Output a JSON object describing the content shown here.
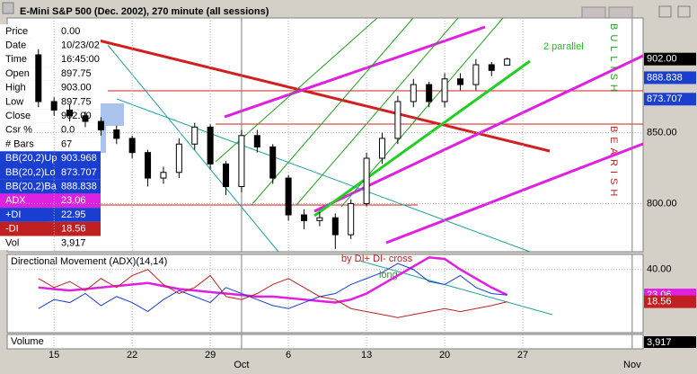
{
  "chart_data": [
    {
      "type": "candlestick",
      "title": "E-Mini S&P 500 (Dec. 2002), 270 minute (all sessions)",
      "x": [
        -1,
        0,
        1,
        2,
        3,
        4,
        5,
        6,
        7,
        8,
        9,
        10,
        11,
        12,
        13,
        14,
        15,
        16,
        17,
        18,
        19,
        20,
        21,
        22,
        23,
        24,
        25,
        26,
        27,
        28,
        29
      ],
      "open": [
        905,
        872,
        866,
        862,
        858,
        852,
        846,
        836,
        818,
        822,
        842,
        854,
        828,
        812,
        848,
        840,
        818,
        792,
        788,
        790,
        778,
        800,
        832,
        846,
        872,
        884,
        872,
        888,
        884,
        898,
        897.75
      ],
      "high": [
        909,
        875,
        870,
        865,
        861,
        855,
        848,
        838,
        826,
        846,
        857,
        856,
        830,
        852,
        852,
        842,
        820,
        796,
        794,
        793,
        803,
        836,
        850,
        876,
        888,
        886,
        892,
        892,
        902,
        900,
        903
      ],
      "low": [
        868,
        862,
        858,
        854,
        848,
        842,
        832,
        812,
        814,
        818,
        838,
        824,
        806,
        808,
        836,
        814,
        788,
        782,
        784,
        768,
        775,
        798,
        828,
        842,
        868,
        868,
        868,
        880,
        880,
        890,
        897.75
      ],
      "close": [
        872,
        866,
        862,
        858,
        852,
        846,
        836,
        818,
        822,
        842,
        854,
        828,
        812,
        848,
        840,
        818,
        792,
        788,
        790,
        778,
        800,
        832,
        846,
        872,
        884,
        872,
        888,
        884,
        898,
        894,
        902
      ],
      "xlim": [
        -3,
        37.7
      ],
      "ylim": [
        766,
        931
      ],
      "xticks": [
        {
          "value": 0,
          "label": "15"
        },
        {
          "value": 5,
          "label": "22"
        },
        {
          "value": 10,
          "label": "29"
        },
        {
          "value": 12,
          "label": "Oct"
        },
        {
          "value": 15,
          "label": "6"
        },
        {
          "value": 20,
          "label": "13"
        },
        {
          "value": 25,
          "label": "20"
        },
        {
          "value": 30,
          "label": "27"
        },
        {
          "value": 37,
          "label": "Nov"
        }
      ],
      "yticks": [
        {
          "value": 800,
          "label": "800.00"
        },
        {
          "value": 850,
          "label": "850.00"
        }
      ],
      "last_labels": [
        {
          "value": 902,
          "label": "902.00",
          "color": "#000000"
        },
        {
          "value": 888.838,
          "label": "888.838",
          "color": "#1a3fd0"
        },
        {
          "value": 873.707,
          "label": "873.707",
          "color": "#1a3fd0"
        }
      ],
      "annotations": [
        "2 parallel",
        "BULLISH",
        "BEARISH"
      ],
      "grid": true
    },
    {
      "type": "line",
      "title": "Directional Movement (ADX)(14,14)",
      "x": [
        -1,
        0,
        1,
        2,
        3,
        4,
        5,
        6,
        7,
        8,
        9,
        10,
        11,
        12,
        13,
        14,
        15,
        16,
        17,
        18,
        19,
        20,
        21,
        22,
        23,
        24,
        25,
        26,
        27,
        28,
        29
      ],
      "series": [
        {
          "name": "ADX",
          "color": "#e020e0",
          "values": [
            28,
            27,
            26,
            27,
            28,
            29,
            30,
            31,
            29,
            27,
            26,
            25,
            24,
            23,
            22,
            22,
            21,
            20,
            19,
            18,
            20,
            24,
            30,
            36,
            42,
            48,
            47,
            40,
            34,
            28,
            23.06
          ]
        },
        {
          "name": "+DI",
          "color": "#1a3fd0",
          "values": [
            14,
            20,
            18,
            24,
            16,
            22,
            18,
            12,
            20,
            26,
            22,
            18,
            28,
            24,
            20,
            16,
            14,
            18,
            22,
            24,
            30,
            34,
            38,
            44,
            40,
            32,
            30,
            36,
            28,
            24,
            22.95
          ]
        },
        {
          "name": "-DI",
          "color": "#c02020",
          "values": [
            34,
            28,
            32,
            26,
            34,
            28,
            36,
            40,
            30,
            24,
            28,
            36,
            22,
            20,
            24,
            30,
            34,
            28,
            22,
            20,
            14,
            12,
            10,
            8,
            10,
            12,
            14,
            12,
            14,
            16,
            18.56
          ]
        }
      ],
      "ylim": [
        -2,
        50
      ],
      "yticks": [
        {
          "value": 40,
          "label": "40.00"
        }
      ],
      "last_labels": [
        {
          "value": 23.06,
          "label": "23.06",
          "color": "#e020e0"
        },
        {
          "value": 18.56,
          "label": "18.56",
          "color": "#c02020"
        }
      ],
      "annotations": [
        "by DI+ DI- cross",
        "long"
      ]
    },
    {
      "type": "volume",
      "title": "Volume",
      "last_label": "3,917"
    }
  ],
  "data_window": {
    "rows": [
      {
        "cells": [
          "Price",
          "0.00"
        ],
        "bg": "#ffffff"
      },
      {
        "cells": [
          "Date",
          "10/23/02"
        ],
        "bg": "#ffffff"
      },
      {
        "cells": [
          "Time",
          "16:45:00"
        ],
        "bg": "#ffffff"
      },
      {
        "cells": [
          "Open",
          "897.75"
        ],
        "bg": "#ffffff"
      },
      {
        "cells": [
          "High",
          "903.00"
        ],
        "bg": "#ffffff"
      },
      {
        "cells": [
          "Low",
          "897.75"
        ],
        "bg": "#ffffff"
      },
      {
        "cells": [
          "Close",
          "902.00"
        ],
        "bg": "#ffffff"
      },
      {
        "cells": [
          "Csr %",
          "0.0"
        ],
        "bg": "#ffffff"
      },
      {
        "cells": [
          "# Bars",
          "67"
        ],
        "bg": "#ffffff"
      },
      {
        "cells": [
          "BB(20,2)Up",
          "903.968"
        ],
        "bg": "#1a3fd0"
      },
      {
        "cells": [
          "BB(20,2)Lo",
          "873.707"
        ],
        "bg": "#1a3fd0"
      },
      {
        "cells": [
          "BB(20,2)Ba",
          "888.838"
        ],
        "bg": "#1a3fd0"
      },
      {
        "cells": [
          "ADX",
          "23.06"
        ],
        "bg": "#e020e0"
      },
      {
        "cells": [
          "+DI",
          "22.95"
        ],
        "bg": "#1a3fd0"
      },
      {
        "cells": [
          "-DI",
          "18.56"
        ],
        "bg": "#c02020"
      },
      {
        "cells": [
          "Vol",
          "3,917"
        ],
        "bg": "#ffffff"
      }
    ]
  }
}
